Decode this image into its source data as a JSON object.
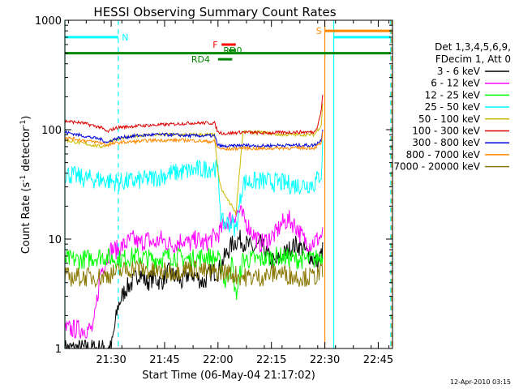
{
  "chart_data": {
    "type": "line",
    "title": "HESSI Observing Summary Count Rates",
    "xlabel": "Start Time (06-May-04 21:17:02)",
    "ylabel_main": "Count Rate (s",
    "ylabel_sup1": "-1",
    "ylabel_mid": " detector",
    "ylabel_sup2": "-1",
    "ylabel_end": ")",
    "x_unit": "minutes after 21:17:02",
    "xlim": [
      0,
      92
    ],
    "ylim": [
      1,
      1000
    ],
    "y_scale": "log",
    "x_ticks": [
      {
        "value": 13,
        "label": "21:30"
      },
      {
        "value": 28,
        "label": "21:45"
      },
      {
        "value": 43,
        "label": "22:00"
      },
      {
        "value": 58,
        "label": "22:15"
      },
      {
        "value": 73,
        "label": "22:30"
      },
      {
        "value": 88,
        "label": "22:45"
      }
    ],
    "y_ticks": [
      {
        "value": 1,
        "label": "1"
      },
      {
        "value": 10,
        "label": "10"
      },
      {
        "value": 100,
        "label": "100"
      },
      {
        "value": 1000,
        "label": "1000"
      }
    ],
    "legend_header": [
      "Det 1,3,4,5,6,9,",
      "FDecim 1, Att 0"
    ],
    "legend_position": "right",
    "series": [
      {
        "name": "3 - 6 keV",
        "color": "#000000",
        "x": [
          0,
          13,
          15,
          17,
          19,
          21,
          23,
          25,
          27,
          29,
          31,
          33,
          35,
          37,
          39,
          41,
          43,
          45,
          47,
          49,
          51,
          53,
          55,
          57,
          59,
          61,
          63,
          65,
          67,
          69,
          71,
          72.5
        ],
        "y": [
          1,
          1,
          2.5,
          3.5,
          4,
          5,
          4,
          4.5,
          4,
          5,
          4.5,
          4,
          5,
          4.5,
          4,
          5,
          5,
          7,
          9,
          10,
          9,
          8,
          9,
          7,
          6,
          7,
          8,
          9,
          8,
          7,
          6,
          8
        ]
      },
      {
        "name": "6 - 12 keV",
        "color": "#ff00ff",
        "x": [
          0,
          8,
          10,
          13,
          15,
          17,
          19,
          21,
          23,
          25,
          27,
          29,
          31,
          33,
          35,
          37,
          39,
          41,
          43,
          45,
          47,
          49,
          51,
          53,
          55,
          57,
          59,
          61,
          63,
          65,
          67,
          69,
          71,
          72.5
        ],
        "y": [
          1.5,
          1.5,
          5,
          8,
          8,
          9,
          10,
          9,
          10,
          9,
          10,
          9,
          9,
          10,
          9,
          10,
          9,
          10,
          11,
          14,
          16,
          18,
          14,
          11,
          9,
          10,
          11,
          14,
          15,
          13,
          10,
          9,
          10,
          11
        ]
      },
      {
        "name": "12 - 25 keV",
        "color": "#00ff00",
        "x": [
          0,
          5,
          10,
          15,
          20,
          25,
          30,
          35,
          40,
          43,
          44,
          45,
          46,
          47,
          48,
          50,
          55,
          60,
          65,
          70,
          72.5
        ],
        "y": [
          6.5,
          6.5,
          7,
          6.5,
          7,
          6.5,
          7,
          6.5,
          7,
          6.5,
          5.5,
          4,
          5,
          6,
          3,
          6.5,
          6.5,
          7,
          6.5,
          6.5,
          7
        ]
      },
      {
        "name": "25 - 50 keV",
        "color": "#00ffff",
        "x": [
          0,
          5,
          10,
          15,
          20,
          25,
          30,
          35,
          40,
          42,
          43,
          44,
          46,
          47,
          48,
          50,
          55,
          60,
          65,
          70,
          72,
          72.5
        ],
        "y": [
          40,
          36,
          35,
          33,
          34,
          36,
          40,
          42,
          44,
          46,
          40,
          14,
          14,
          14,
          12,
          33,
          34,
          33,
          31,
          32,
          40,
          80
        ]
      },
      {
        "name": "50 - 100 keV",
        "color": "#ccbb00",
        "x": [
          0,
          5,
          10,
          12,
          13,
          15,
          20,
          25,
          30,
          35,
          40,
          42,
          43,
          44,
          45,
          46,
          47,
          48,
          50,
          55,
          60,
          65,
          70,
          72,
          72.5
        ],
        "y": [
          80,
          75,
          70,
          72,
          80,
          82,
          88,
          90,
          90,
          90,
          90,
          90,
          40,
          28,
          25,
          22,
          20,
          17,
          95,
          95,
          90,
          90,
          90,
          110,
          200
        ]
      },
      {
        "name": "100 - 300 keV",
        "color": "#dd0000",
        "x": [
          0,
          5,
          10,
          12,
          13,
          15,
          20,
          25,
          30,
          35,
          40,
          42,
          43,
          45,
          50,
          55,
          60,
          65,
          70,
          71,
          72,
          72.5
        ],
        "y": [
          120,
          115,
          105,
          95,
          100,
          105,
          108,
          110,
          112,
          115,
          115,
          115,
          95,
          92,
          95,
          93,
          94,
          95,
          95,
          110,
          150,
          230
        ]
      },
      {
        "name": "300 - 800 keV",
        "color": "#0000dd",
        "x": [
          0,
          5,
          10,
          12,
          13,
          15,
          20,
          25,
          30,
          35,
          40,
          42,
          43,
          45,
          50,
          55,
          60,
          65,
          70,
          72,
          72.5
        ],
        "y": [
          95,
          88,
          82,
          76,
          80,
          84,
          88,
          90,
          90,
          88,
          88,
          88,
          72,
          70,
          72,
          71,
          72,
          72,
          72,
          80,
          110
        ]
      },
      {
        "name": "800 - 7000 keV",
        "color": "#ff8800",
        "x": [
          0,
          5,
          10,
          12,
          13,
          15,
          20,
          25,
          30,
          35,
          40,
          42,
          43,
          45,
          50,
          55,
          60,
          65,
          70,
          72,
          72.5
        ],
        "y": [
          85,
          80,
          76,
          72,
          74,
          76,
          78,
          80,
          80,
          80,
          78,
          78,
          68,
          66,
          68,
          67,
          68,
          68,
          68,
          75,
          100
        ]
      },
      {
        "name": "7000 - 20000 keV",
        "color": "#887700",
        "x": [
          0,
          5,
          10,
          15,
          20,
          25,
          30,
          35,
          40,
          43,
          45,
          50,
          55,
          60,
          65,
          70,
          72.5
        ],
        "y": [
          4.5,
          4.5,
          4.5,
          5,
          5.5,
          5,
          5,
          5.5,
          5,
          5,
          5,
          4.5,
          4.5,
          5,
          4.5,
          4.5,
          5
        ]
      }
    ],
    "flag_bars": [
      {
        "label": "N",
        "color": "#00ffff",
        "y": 700,
        "x_start": 0,
        "x_end": 15,
        "label_x": 16,
        "segments": [
          [
            0,
            15
          ],
          [
            75.5,
            91.5
          ]
        ]
      },
      {
        "label": "S",
        "color": "#ff8800",
        "y": 800,
        "x_start": 73,
        "x_end": 91.5,
        "label_x": 70.5,
        "segments": [
          [
            73,
            91.5
          ]
        ]
      },
      {
        "label": "",
        "color": "#008800",
        "y": 500,
        "x_start": 0,
        "x_end": 91.5,
        "label_x": 0,
        "segments": [
          [
            0,
            91.5
          ]
        ]
      },
      {
        "label": "F",
        "color": "#ff0000",
        "y": 600,
        "x_start": 44,
        "x_end": 48,
        "label_x": 41.5,
        "segments": [
          [
            44,
            48
          ]
        ]
      },
      {
        "label": "RD0",
        "color": "#008800",
        "y": 530,
        "x_start": 46,
        "x_end": 48,
        "label_x": 44.5,
        "segments": [
          [
            46,
            48
          ]
        ]
      },
      {
        "label": "RD4",
        "color": "#008800",
        "y": 440,
        "x_start": 43,
        "x_end": 47,
        "label_x": 35.5,
        "segments": [
          [
            43,
            47
          ]
        ]
      }
    ],
    "vertical_markers": [
      {
        "x": 0,
        "color": "#00ffff",
        "style": "solid"
      },
      {
        "x": 15,
        "color": "#00ffff",
        "style": "dashed"
      },
      {
        "x": 73,
        "color": "#ff8800",
        "style": "solid"
      },
      {
        "x": 75.5,
        "color": "#00ffff",
        "style": "solid"
      },
      {
        "x": 91.5,
        "color": "#00ffff",
        "style": "dashed"
      },
      {
        "x": 91.8,
        "color": "#ff8800",
        "style": "dashed"
      }
    ],
    "grid": false
  },
  "footer": {
    "timestamp": "12-Apr-2010 03:15"
  }
}
